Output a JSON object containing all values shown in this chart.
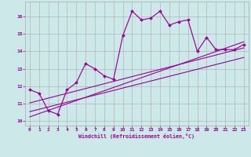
{
  "xlabel": "Windchill (Refroidissement éolien,°C)",
  "background_color": "#cce8e8",
  "line_color": "#990099",
  "xlim": [
    -0.5,
    23.5
  ],
  "ylim": [
    9.75,
    16.85
  ],
  "yticks": [
    10,
    11,
    12,
    13,
    14,
    15,
    16
  ],
  "xticks": [
    0,
    1,
    2,
    3,
    4,
    5,
    6,
    7,
    8,
    9,
    10,
    11,
    12,
    13,
    14,
    15,
    16,
    17,
    18,
    19,
    20,
    21,
    22,
    23
  ],
  "main_x": [
    0,
    1,
    2,
    3,
    4,
    5,
    6,
    7,
    8,
    9,
    10,
    11,
    12,
    13,
    14,
    15,
    16,
    17,
    18,
    19,
    20,
    21,
    22,
    23
  ],
  "main_y": [
    11.8,
    11.6,
    10.6,
    10.4,
    11.8,
    12.2,
    13.3,
    13.0,
    12.6,
    12.4,
    14.9,
    16.3,
    15.8,
    15.9,
    16.3,
    15.5,
    15.7,
    15.8,
    14.0,
    14.8,
    14.1,
    14.1,
    14.1,
    14.4
  ],
  "line1_x": [
    0,
    23
  ],
  "line1_y": [
    11.05,
    14.2
  ],
  "line2_x": [
    0,
    23
  ],
  "line2_y": [
    10.55,
    13.65
  ],
  "line3_x": [
    0,
    23
  ],
  "line3_y": [
    10.25,
    14.55
  ]
}
